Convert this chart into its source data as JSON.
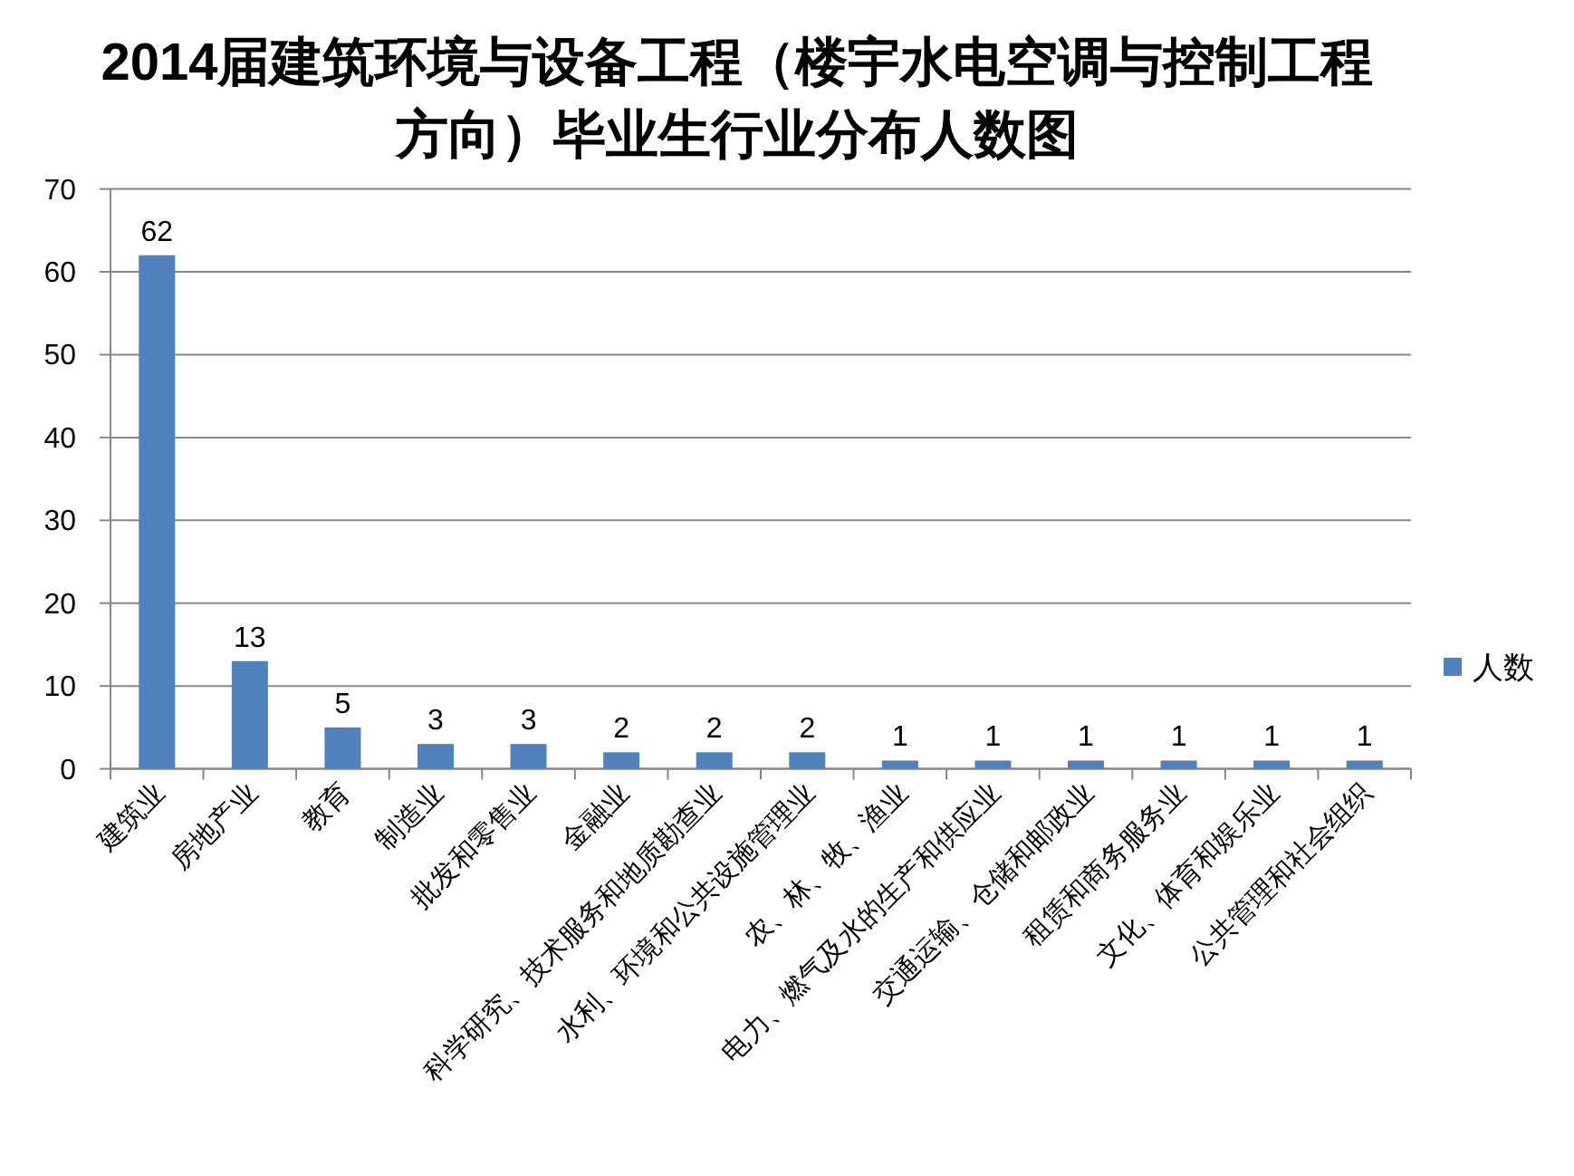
{
  "chart_data": {
    "type": "bar",
    "title": "2014届建筑环境与设备工程（楼宇水电空调与控制工程方向）毕业生行业分布人数图",
    "categories": [
      "建筑业",
      "房地产业",
      "教育",
      "制造业",
      "批发和零售业",
      "金融业",
      "科学研究、技术服务和地质勘查业",
      "水利、环境和公共设施管理业",
      "农、林、牧、渔业",
      "电力、燃气及水的生产和供应业",
      "交通运输、仓储和邮政业",
      "租赁和商务服务业",
      "文化、体育和娱乐业",
      "公共管理和社会组织"
    ],
    "series": [
      {
        "name": "人数",
        "color": "#4f81bd",
        "values": [
          62,
          13,
          5,
          3,
          3,
          2,
          2,
          2,
          1,
          1,
          1,
          1,
          1,
          1
        ]
      }
    ],
    "ylim": [
      0,
      70
    ],
    "yticks": [
      0,
      10,
      20,
      30,
      40,
      50,
      60,
      70
    ],
    "grid": "y",
    "legend": "right",
    "data_labels": true
  }
}
